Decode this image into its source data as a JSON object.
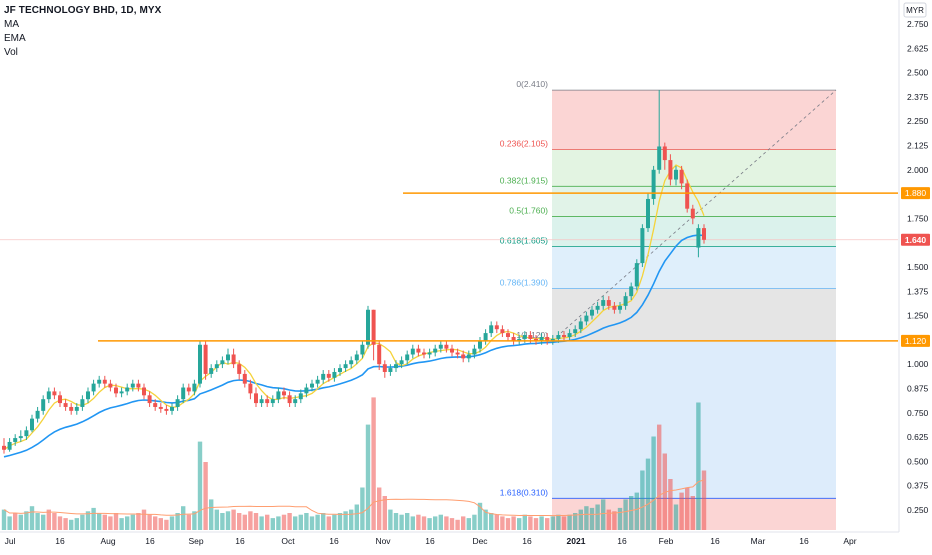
{
  "header": {
    "title": "JF TECHNOLOGY BHD, 1D, MYX",
    "indicators": [
      "MA",
      "EMA",
      "Vol"
    ]
  },
  "chart_data": {
    "type": "candlestick",
    "title": "JF TECHNOLOGY BHD, 1D, MYX",
    "currency": "MYR",
    "ylim": [
      0.2,
      2.85
    ],
    "y_ticks": [
      "2.750",
      "2.625",
      "2.500",
      "2.375",
      "2.250",
      "2.125",
      "2.000",
      "1.875",
      "1.750",
      "1.625",
      "1.500",
      "1.375",
      "1.250",
      "1.125",
      "1.000",
      "0.875",
      "0.750",
      "0.625",
      "0.500",
      "0.375",
      "0.250"
    ],
    "x_ticks": [
      "Jul",
      "16",
      "Aug",
      "16",
      "Sep",
      "16",
      "Oct",
      "16",
      "Nov",
      "16",
      "Dec",
      "16",
      "2021",
      "16",
      "Feb",
      "16",
      "Mar",
      "16",
      "Apr"
    ],
    "last_price": "1.640",
    "horizontal_lines": [
      {
        "label": "1.880",
        "value": 1.88
      },
      {
        "label": "1.120",
        "value": 1.12
      }
    ],
    "fibonacci": [
      {
        "label": "0(2.410)",
        "value": 2.41
      },
      {
        "label": "0.236(2.105)",
        "value": 2.105
      },
      {
        "label": "0.382(1.915)",
        "value": 1.915
      },
      {
        "label": "0.5(1.760)",
        "value": 1.76
      },
      {
        "label": "0.618(1.605)",
        "value": 1.605
      },
      {
        "label": "0.786(1.390)",
        "value": 1.39
      },
      {
        "label": "1(1.120)",
        "value": 1.12
      },
      {
        "label": "1.618(0.310)",
        "value": 0.31
      }
    ],
    "candles": [
      [
        0.58,
        0.56,
        0.62,
        0.54
      ],
      [
        0.56,
        0.6,
        0.62,
        0.55
      ],
      [
        0.6,
        0.62,
        0.64,
        0.58
      ],
      [
        0.62,
        0.63,
        0.66,
        0.6
      ],
      [
        0.63,
        0.66,
        0.68,
        0.61
      ],
      [
        0.66,
        0.72,
        0.74,
        0.65
      ],
      [
        0.72,
        0.76,
        0.78,
        0.7
      ],
      [
        0.76,
        0.82,
        0.84,
        0.74
      ],
      [
        0.82,
        0.86,
        0.88,
        0.8
      ],
      [
        0.86,
        0.84,
        0.88,
        0.82
      ],
      [
        0.84,
        0.8,
        0.86,
        0.78
      ],
      [
        0.8,
        0.78,
        0.82,
        0.76
      ],
      [
        0.78,
        0.76,
        0.8,
        0.74
      ],
      [
        0.76,
        0.78,
        0.8,
        0.74
      ],
      [
        0.78,
        0.82,
        0.84,
        0.76
      ],
      [
        0.82,
        0.86,
        0.88,
        0.8
      ],
      [
        0.86,
        0.9,
        0.92,
        0.84
      ],
      [
        0.9,
        0.92,
        0.94,
        0.88
      ],
      [
        0.92,
        0.9,
        0.94,
        0.88
      ],
      [
        0.9,
        0.88,
        0.92,
        0.86
      ],
      [
        0.88,
        0.85,
        0.9,
        0.83
      ],
      [
        0.85,
        0.86,
        0.88,
        0.83
      ],
      [
        0.86,
        0.88,
        0.9,
        0.84
      ],
      [
        0.88,
        0.9,
        0.92,
        0.86
      ],
      [
        0.9,
        0.88,
        0.92,
        0.86
      ],
      [
        0.88,
        0.84,
        0.9,
        0.82
      ],
      [
        0.84,
        0.8,
        0.86,
        0.78
      ],
      [
        0.8,
        0.78,
        0.82,
        0.76
      ],
      [
        0.78,
        0.77,
        0.8,
        0.75
      ],
      [
        0.77,
        0.76,
        0.79,
        0.74
      ],
      [
        0.76,
        0.78,
        0.8,
        0.74
      ],
      [
        0.78,
        0.82,
        0.84,
        0.76
      ],
      [
        0.82,
        0.88,
        0.9,
        0.8
      ],
      [
        0.88,
        0.86,
        0.9,
        0.84
      ],
      [
        0.86,
        0.9,
        0.92,
        0.84
      ],
      [
        0.9,
        1.1,
        1.12,
        0.88
      ],
      [
        1.1,
        0.95,
        1.12,
        0.92
      ],
      [
        0.95,
        0.98,
        1.0,
        0.93
      ],
      [
        0.98,
        1.0,
        1.02,
        0.96
      ],
      [
        1.0,
        1.02,
        1.04,
        0.98
      ],
      [
        1.02,
        1.05,
        1.08,
        1.0
      ],
      [
        1.05,
        1.0,
        1.08,
        0.98
      ],
      [
        1.0,
        0.95,
        1.02,
        0.92
      ],
      [
        0.95,
        0.9,
        0.97,
        0.88
      ],
      [
        0.9,
        0.85,
        0.92,
        0.82
      ],
      [
        0.85,
        0.8,
        0.88,
        0.78
      ],
      [
        0.8,
        0.82,
        0.84,
        0.78
      ],
      [
        0.82,
        0.8,
        0.84,
        0.78
      ],
      [
        0.8,
        0.82,
        0.84,
        0.78
      ],
      [
        0.82,
        0.86,
        0.88,
        0.8
      ],
      [
        0.86,
        0.84,
        0.88,
        0.82
      ],
      [
        0.84,
        0.8,
        0.86,
        0.78
      ],
      [
        0.8,
        0.82,
        0.84,
        0.78
      ],
      [
        0.82,
        0.85,
        0.87,
        0.8
      ],
      [
        0.85,
        0.88,
        0.9,
        0.83
      ],
      [
        0.88,
        0.9,
        0.92,
        0.86
      ],
      [
        0.9,
        0.92,
        0.94,
        0.88
      ],
      [
        0.92,
        0.95,
        0.97,
        0.9
      ],
      [
        0.95,
        0.93,
        0.97,
        0.91
      ],
      [
        0.93,
        0.96,
        0.98,
        0.91
      ],
      [
        0.96,
        0.98,
        1.0,
        0.94
      ],
      [
        0.98,
        1.0,
        1.02,
        0.96
      ],
      [
        1.0,
        1.02,
        1.04,
        0.98
      ],
      [
        1.02,
        1.05,
        1.07,
        1.0
      ],
      [
        1.05,
        1.1,
        1.12,
        1.03
      ],
      [
        1.1,
        1.28,
        1.3,
        1.08
      ],
      [
        1.28,
        1.1,
        1.28,
        1.02
      ],
      [
        1.1,
        1.0,
        1.12,
        0.97
      ],
      [
        1.0,
        0.96,
        1.02,
        0.93
      ],
      [
        0.96,
        0.98,
        1.0,
        0.94
      ],
      [
        0.98,
        1.0,
        1.02,
        0.96
      ],
      [
        1.0,
        1.02,
        1.04,
        0.98
      ],
      [
        1.02,
        1.05,
        1.07,
        1.0
      ],
      [
        1.05,
        1.08,
        1.1,
        1.03
      ],
      [
        1.08,
        1.06,
        1.1,
        1.04
      ],
      [
        1.06,
        1.05,
        1.08,
        1.03
      ],
      [
        1.05,
        1.06,
        1.08,
        1.03
      ],
      [
        1.06,
        1.08,
        1.1,
        1.04
      ],
      [
        1.08,
        1.1,
        1.12,
        1.06
      ],
      [
        1.1,
        1.08,
        1.12,
        1.06
      ],
      [
        1.08,
        1.06,
        1.1,
        1.04
      ],
      [
        1.06,
        1.05,
        1.08,
        1.03
      ],
      [
        1.05,
        1.03,
        1.07,
        1.01
      ],
      [
        1.03,
        1.05,
        1.07,
        1.01
      ],
      [
        1.05,
        1.08,
        1.1,
        1.03
      ],
      [
        1.08,
        1.12,
        1.14,
        1.06
      ],
      [
        1.12,
        1.16,
        1.18,
        1.1
      ],
      [
        1.16,
        1.2,
        1.22,
        1.14
      ],
      [
        1.2,
        1.18,
        1.22,
        1.16
      ],
      [
        1.18,
        1.16,
        1.2,
        1.14
      ],
      [
        1.16,
        1.14,
        1.18,
        1.12
      ],
      [
        1.14,
        1.12,
        1.16,
        1.1
      ],
      [
        1.12,
        1.13,
        1.15,
        1.1
      ],
      [
        1.13,
        1.15,
        1.17,
        1.11
      ],
      [
        1.15,
        1.13,
        1.17,
        1.11
      ],
      [
        1.13,
        1.12,
        1.15,
        1.1
      ],
      [
        1.12,
        1.14,
        1.16,
        1.1
      ],
      [
        1.14,
        1.12,
        1.16,
        1.1
      ],
      [
        1.12,
        1.13,
        1.15,
        1.1
      ],
      [
        1.13,
        1.15,
        1.17,
        1.11
      ],
      [
        1.15,
        1.14,
        1.17,
        1.12
      ],
      [
        1.14,
        1.16,
        1.18,
        1.12
      ],
      [
        1.16,
        1.18,
        1.2,
        1.14
      ],
      [
        1.18,
        1.22,
        1.24,
        1.16
      ],
      [
        1.22,
        1.25,
        1.27,
        1.2
      ],
      [
        1.25,
        1.28,
        1.3,
        1.23
      ],
      [
        1.28,
        1.3,
        1.32,
        1.26
      ],
      [
        1.3,
        1.33,
        1.35,
        1.28
      ],
      [
        1.33,
        1.3,
        1.35,
        1.28
      ],
      [
        1.3,
        1.28,
        1.32,
        1.26
      ],
      [
        1.28,
        1.3,
        1.32,
        1.26
      ],
      [
        1.3,
        1.35,
        1.37,
        1.28
      ],
      [
        1.35,
        1.4,
        1.42,
        1.33
      ],
      [
        1.4,
        1.52,
        1.54,
        1.38
      ],
      [
        1.52,
        1.7,
        1.72,
        1.5
      ],
      [
        1.7,
        1.85,
        1.88,
        1.68
      ],
      [
        1.85,
        2.0,
        2.02,
        1.82
      ],
      [
        2.0,
        2.12,
        2.41,
        1.98
      ],
      [
        2.12,
        2.05,
        2.14,
        2.0
      ],
      [
        2.05,
        1.95,
        2.08,
        1.92
      ],
      [
        1.95,
        2.0,
        2.02,
        1.92
      ],
      [
        2.0,
        1.93,
        2.02,
        1.9
      ],
      [
        1.93,
        1.8,
        1.95,
        1.78
      ],
      [
        1.8,
        1.75,
        1.82,
        1.72
      ],
      [
        1.6,
        1.7,
        1.72,
        1.55
      ],
      [
        1.7,
        1.64,
        1.72,
        1.62
      ]
    ],
    "volume": [
      [
        0.12,
        "up"
      ],
      [
        0.08,
        "up"
      ],
      [
        0.1,
        "dn"
      ],
      [
        0.09,
        "up"
      ],
      [
        0.11,
        "up"
      ],
      [
        0.14,
        "up"
      ],
      [
        0.1,
        "up"
      ],
      [
        0.09,
        "up"
      ],
      [
        0.12,
        "dn"
      ],
      [
        0.1,
        "dn"
      ],
      [
        0.08,
        "dn"
      ],
      [
        0.07,
        "dn"
      ],
      [
        0.06,
        "up"
      ],
      [
        0.07,
        "up"
      ],
      [
        0.09,
        "up"
      ],
      [
        0.11,
        "up"
      ],
      [
        0.13,
        "up"
      ],
      [
        0.1,
        "up"
      ],
      [
        0.09,
        "dn"
      ],
      [
        0.08,
        "dn"
      ],
      [
        0.1,
        "dn"
      ],
      [
        0.07,
        "up"
      ],
      [
        0.08,
        "up"
      ],
      [
        0.09,
        "up"
      ],
      [
        0.1,
        "dn"
      ],
      [
        0.12,
        "dn"
      ],
      [
        0.09,
        "dn"
      ],
      [
        0.08,
        "dn"
      ],
      [
        0.07,
        "dn"
      ],
      [
        0.06,
        "dn"
      ],
      [
        0.08,
        "up"
      ],
      [
        0.1,
        "up"
      ],
      [
        0.14,
        "up"
      ],
      [
        0.09,
        "dn"
      ],
      [
        0.11,
        "up"
      ],
      [
        0.52,
        "up"
      ],
      [
        0.4,
        "dn"
      ],
      [
        0.18,
        "up"
      ],
      [
        0.12,
        "up"
      ],
      [
        0.1,
        "up"
      ],
      [
        0.11,
        "up"
      ],
      [
        0.12,
        "dn"
      ],
      [
        0.1,
        "dn"
      ],
      [
        0.09,
        "dn"
      ],
      [
        0.11,
        "dn"
      ],
      [
        0.1,
        "dn"
      ],
      [
        0.08,
        "up"
      ],
      [
        0.09,
        "dn"
      ],
      [
        0.07,
        "up"
      ],
      [
        0.08,
        "up"
      ],
      [
        0.09,
        "dn"
      ],
      [
        0.1,
        "dn"
      ],
      [
        0.08,
        "up"
      ],
      [
        0.09,
        "up"
      ],
      [
        0.1,
        "up"
      ],
      [
        0.08,
        "up"
      ],
      [
        0.09,
        "up"
      ],
      [
        0.1,
        "up"
      ],
      [
        0.08,
        "dn"
      ],
      [
        0.09,
        "up"
      ],
      [
        0.1,
        "up"
      ],
      [
        0.11,
        "up"
      ],
      [
        0.12,
        "up"
      ],
      [
        0.15,
        "up"
      ],
      [
        0.25,
        "up"
      ],
      [
        0.62,
        "up"
      ],
      [
        0.78,
        "dn"
      ],
      [
        0.25,
        "dn"
      ],
      [
        0.2,
        "dn"
      ],
      [
        0.12,
        "up"
      ],
      [
        0.1,
        "up"
      ],
      [
        0.09,
        "up"
      ],
      [
        0.1,
        "up"
      ],
      [
        0.08,
        "up"
      ],
      [
        0.09,
        "dn"
      ],
      [
        0.08,
        "dn"
      ],
      [
        0.07,
        "up"
      ],
      [
        0.08,
        "up"
      ],
      [
        0.09,
        "up"
      ],
      [
        0.08,
        "dn"
      ],
      [
        0.07,
        "dn"
      ],
      [
        0.06,
        "dn"
      ],
      [
        0.08,
        "dn"
      ],
      [
        0.07,
        "up"
      ],
      [
        0.09,
        "up"
      ],
      [
        0.16,
        "up"
      ],
      [
        0.12,
        "up"
      ],
      [
        0.1,
        "up"
      ],
      [
        0.09,
        "dn"
      ],
      [
        0.08,
        "dn"
      ],
      [
        0.07,
        "dn"
      ],
      [
        0.08,
        "dn"
      ],
      [
        0.07,
        "up"
      ],
      [
        0.09,
        "up"
      ],
      [
        0.08,
        "dn"
      ],
      [
        0.07,
        "dn"
      ],
      [
        0.08,
        "up"
      ],
      [
        0.07,
        "dn"
      ],
      [
        0.08,
        "up"
      ],
      [
        0.09,
        "up"
      ],
      [
        0.08,
        "dn"
      ],
      [
        0.09,
        "up"
      ],
      [
        0.1,
        "up"
      ],
      [
        0.12,
        "up"
      ],
      [
        0.14,
        "up"
      ],
      [
        0.13,
        "up"
      ],
      [
        0.15,
        "up"
      ],
      [
        0.18,
        "up"
      ],
      [
        0.12,
        "dn"
      ],
      [
        0.11,
        "dn"
      ],
      [
        0.13,
        "up"
      ],
      [
        0.18,
        "up"
      ],
      [
        0.2,
        "up"
      ],
      [
        0.22,
        "up"
      ],
      [
        0.35,
        "up"
      ],
      [
        0.42,
        "up"
      ],
      [
        0.55,
        "up"
      ],
      [
        0.62,
        "dn"
      ],
      [
        0.45,
        "dn"
      ],
      [
        0.3,
        "dn"
      ],
      [
        0.15,
        "up"
      ],
      [
        0.22,
        "dn"
      ],
      [
        0.25,
        "dn"
      ],
      [
        0.2,
        "dn"
      ],
      [
        0.75,
        "up"
      ],
      [
        0.35,
        "dn"
      ]
    ],
    "volume_range": [
      0,
      1.0
    ]
  }
}
